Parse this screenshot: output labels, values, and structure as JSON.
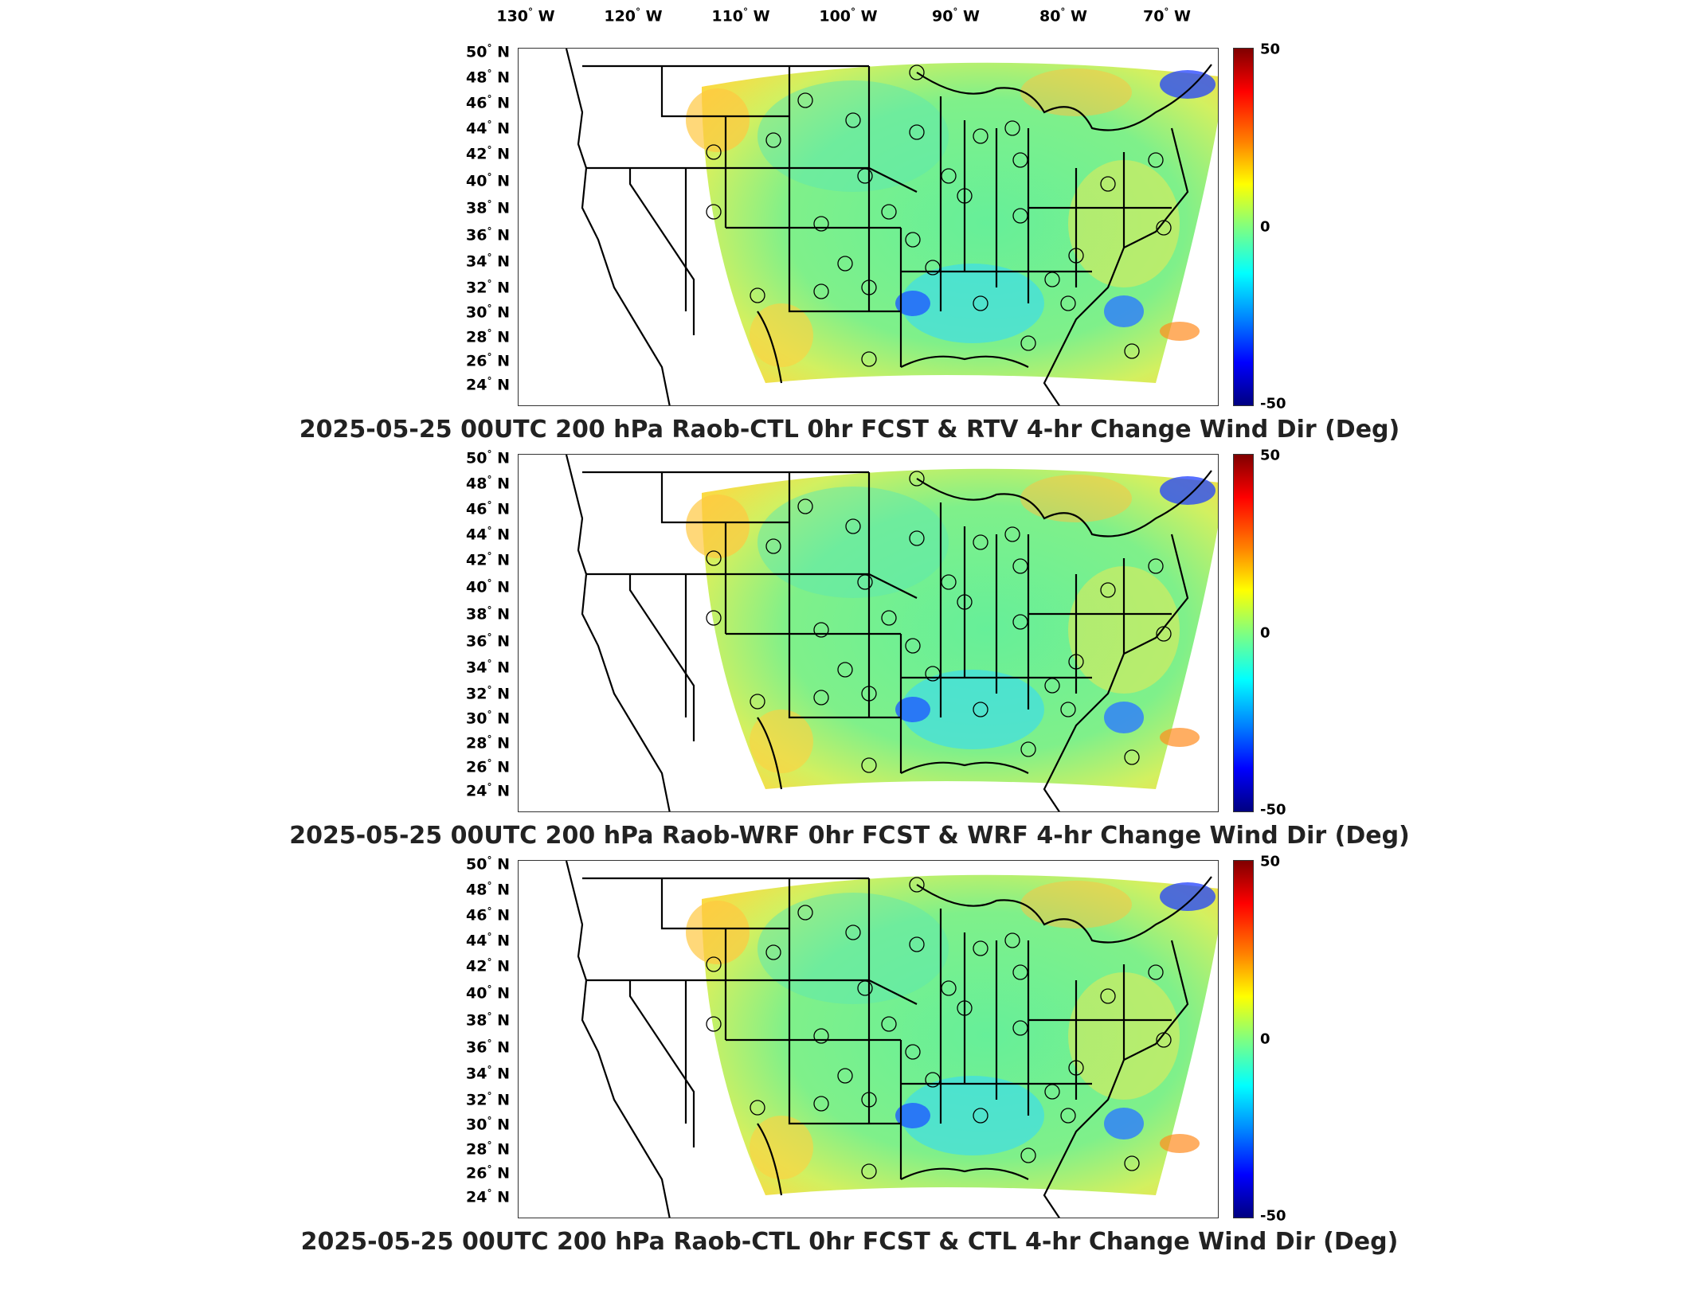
{
  "longitude_labels": [
    {
      "deg": "130",
      "hem": "W"
    },
    {
      "deg": "120",
      "hem": "W"
    },
    {
      "deg": "110",
      "hem": "W"
    },
    {
      "deg": "100",
      "hem": "W"
    },
    {
      "deg": "90",
      "hem": "W"
    },
    {
      "deg": "80",
      "hem": "W"
    },
    {
      "deg": "70",
      "hem": "W"
    }
  ],
  "latitude_labels": [
    "50",
    "48",
    "46",
    "44",
    "42",
    "40",
    "38",
    "36",
    "34",
    "32",
    "30",
    "28",
    "26",
    "24"
  ],
  "lat_hem": "N",
  "degree_symbol": "°",
  "colorbar": {
    "max": "50",
    "mid": "0",
    "min": "-50",
    "colors": [
      "#800000",
      "#ff0000",
      "#ff8000",
      "#ffff00",
      "#80ff80",
      "#00ffff",
      "#0080ff",
      "#0000ff",
      "#000080"
    ]
  },
  "panels": [
    {
      "title": "2025-05-25 00UTC 200 hPa Raob-CTL 0hr FCST & RTV 4-hr Change Wind Dir (Deg)"
    },
    {
      "title": "2025-05-25 00UTC 200 hPa Raob-WRF 0hr FCST & WRF 4-hr Change Wind Dir (Deg)"
    },
    {
      "title": "2025-05-25 00UTC 200 hPa Raob-CTL 0hr FCST & CTL 4-hr Change Wind Dir (Deg)"
    }
  ]
}
